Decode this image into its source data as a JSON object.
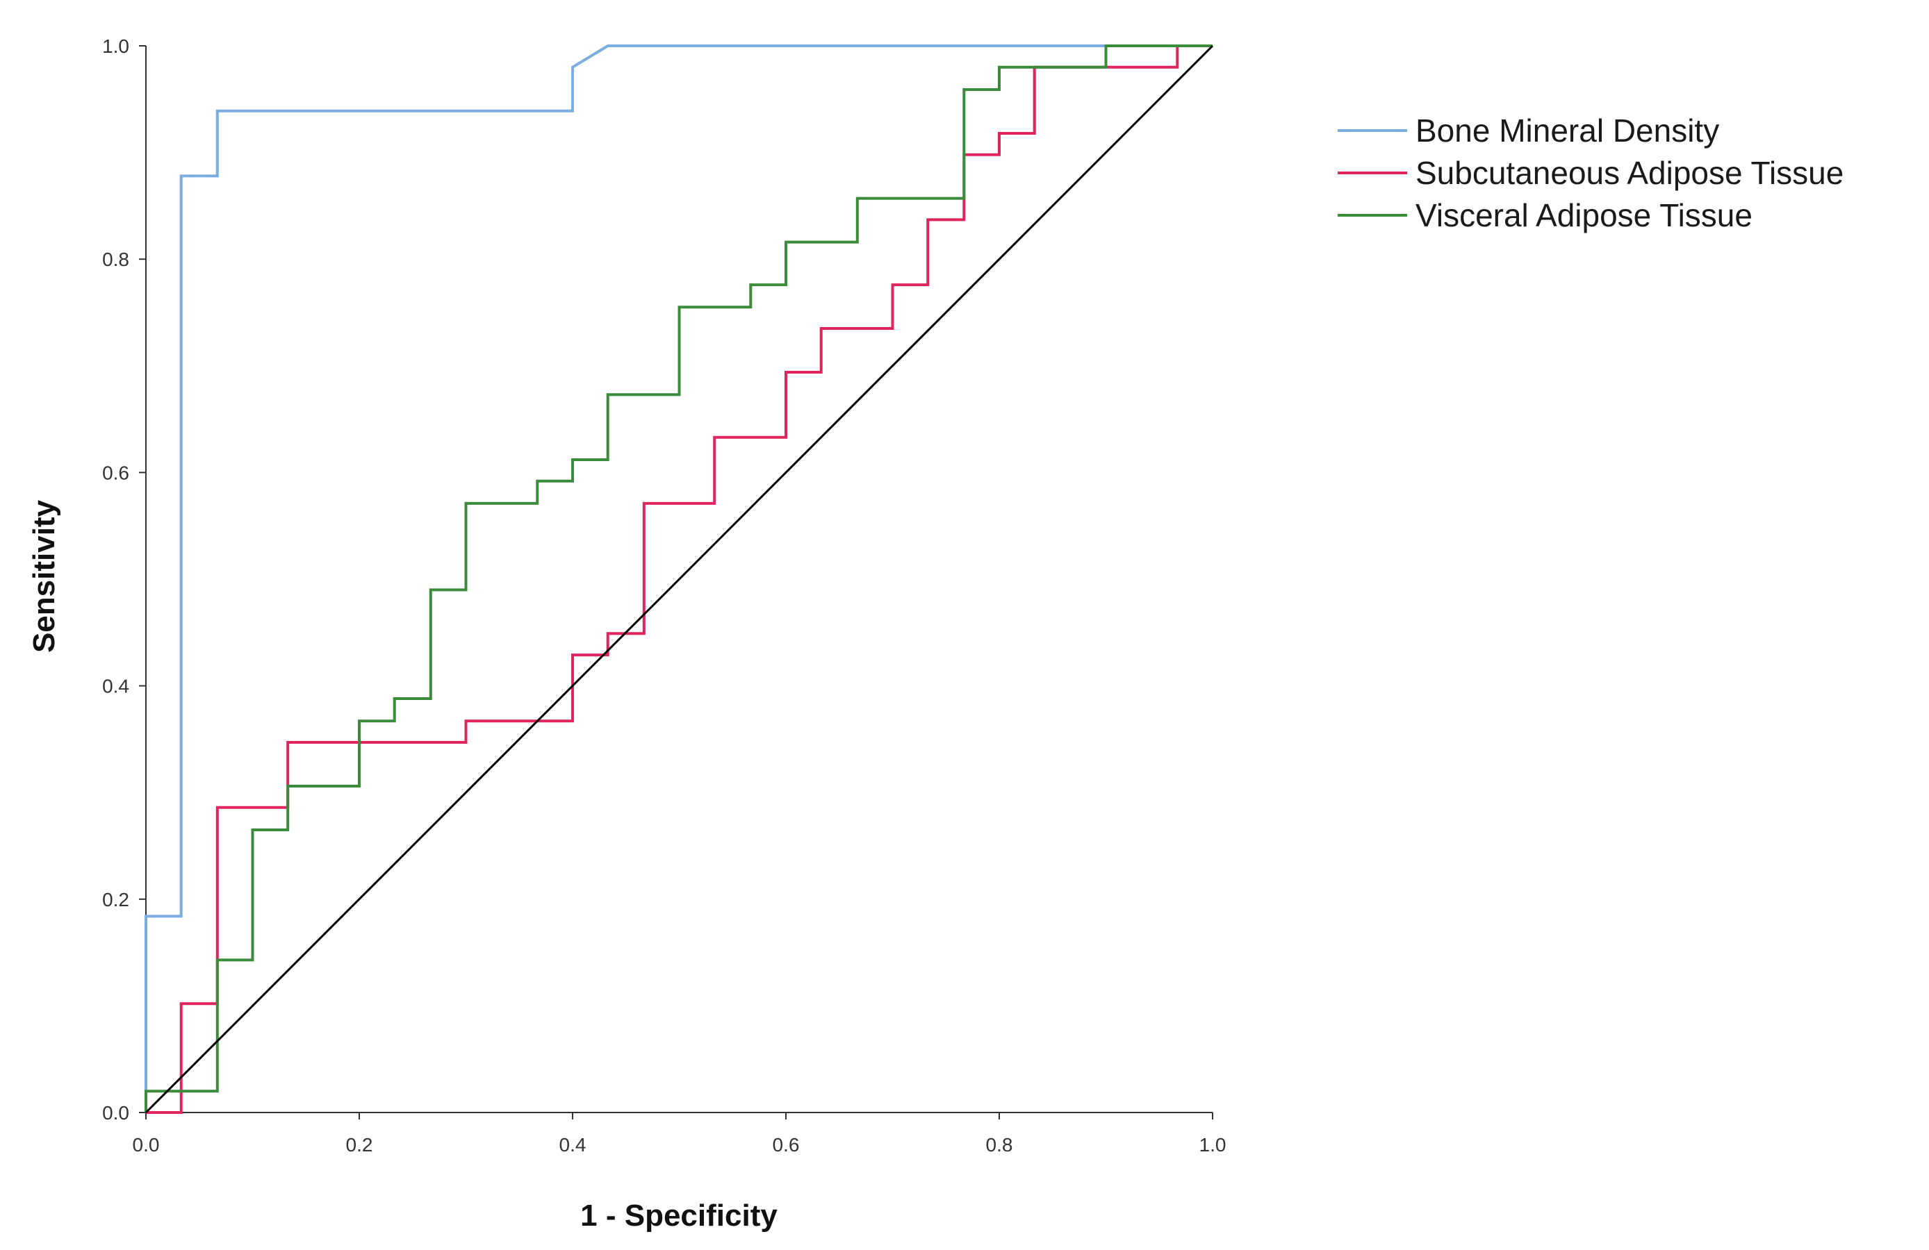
{
  "chart_data": {
    "type": "line",
    "title": "",
    "xlabel": "1 - Specificity",
    "ylabel": "Sensitivity",
    "xlim": [
      0,
      1
    ],
    "ylim": [
      0,
      1
    ],
    "xticks": [
      "0.0",
      "0.2",
      "0.4",
      "0.6",
      "0.8",
      "1.0"
    ],
    "yticks": [
      "0.0",
      "0.2",
      "0.4",
      "0.6",
      "0.8",
      "1.0"
    ],
    "grid": false,
    "legend_position": "top-right",
    "series": [
      {
        "name": "Bone Mineral Density",
        "color": "#7aaee0",
        "x": [
          0,
          0,
          0.033,
          0.033,
          0.067,
          0.067,
          0.4,
          0.4,
          0.433,
          0.433,
          1.0
        ],
        "y": [
          0,
          0.184,
          0.184,
          0.878,
          0.878,
          0.939,
          0.939,
          0.98,
          1.0,
          1.0,
          1.0
        ]
      },
      {
        "name": "Subcutaneous Adipose Tissue",
        "color": "#e0245e",
        "x": [
          0,
          0.033,
          0.033,
          0.067,
          0.067,
          0.133,
          0.133,
          0.3,
          0.3,
          0.4,
          0.4,
          0.433,
          0.433,
          0.467,
          0.467,
          0.533,
          0.533,
          0.6,
          0.6,
          0.633,
          0.633,
          0.7,
          0.7,
          0.733,
          0.733,
          0.767,
          0.767,
          0.8,
          0.8,
          0.833,
          0.833,
          0.967,
          0.967,
          1.0
        ],
        "y": [
          0,
          0,
          0.102,
          0.102,
          0.286,
          0.286,
          0.347,
          0.347,
          0.367,
          0.367,
          0.429,
          0.429,
          0.449,
          0.449,
          0.571,
          0.571,
          0.633,
          0.633,
          0.694,
          0.694,
          0.735,
          0.735,
          0.776,
          0.776,
          0.837,
          0.837,
          0.898,
          0.898,
          0.918,
          0.918,
          0.98,
          0.98,
          1.0,
          1.0
        ]
      },
      {
        "name": "Visceral Adipose Tissue",
        "color": "#3a8c3a",
        "x": [
          0,
          0,
          0.067,
          0.067,
          0.1,
          0.1,
          0.133,
          0.133,
          0.2,
          0.2,
          0.233,
          0.233,
          0.267,
          0.267,
          0.3,
          0.3,
          0.367,
          0.367,
          0.4,
          0.4,
          0.433,
          0.433,
          0.5,
          0.5,
          0.567,
          0.567,
          0.6,
          0.6,
          0.667,
          0.667,
          0.767,
          0.767,
          0.8,
          0.8,
          0.9,
          0.9,
          1.0
        ],
        "y": [
          0,
          0.02,
          0.02,
          0.143,
          0.143,
          0.265,
          0.265,
          0.306,
          0.306,
          0.367,
          0.367,
          0.388,
          0.388,
          0.49,
          0.49,
          0.571,
          0.571,
          0.592,
          0.592,
          0.612,
          0.612,
          0.673,
          0.673,
          0.755,
          0.755,
          0.776,
          0.776,
          0.816,
          0.816,
          0.857,
          0.857,
          0.959,
          0.959,
          0.98,
          0.98,
          1.0,
          1.0
        ]
      },
      {
        "name": "Reference Line",
        "color": "#000000",
        "x": [
          0,
          1
        ],
        "y": [
          0,
          1
        ],
        "show_in_legend": false
      }
    ]
  }
}
